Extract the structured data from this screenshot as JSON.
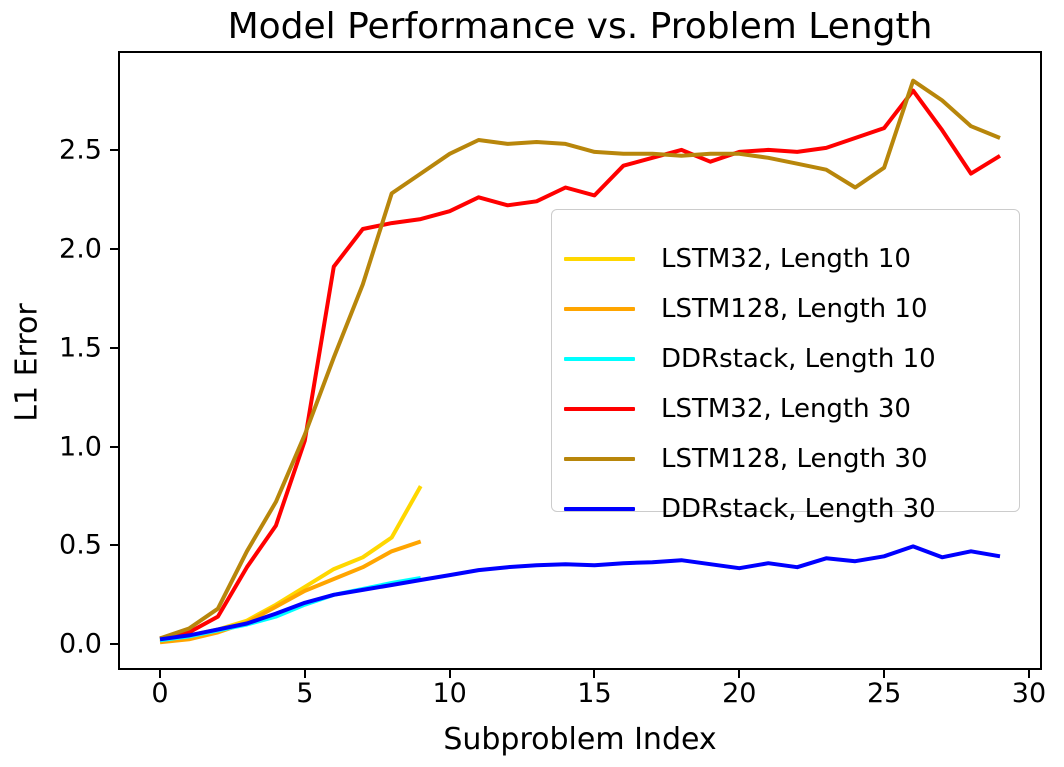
{
  "figure": {
    "title": "Model Performance vs. Problem Length",
    "xlabel": "Subproblem Index",
    "ylabel": "L1 Error"
  },
  "chart_data": {
    "type": "line",
    "title": "Model Performance vs. Problem Length",
    "xlabel": "Subproblem Index",
    "ylabel": "L1 Error",
    "grid": false,
    "legend_position": "center-right",
    "xlim": [
      -1.45,
      30.45
    ],
    "ylim": [
      -0.13,
      3.0
    ],
    "x_ticks": [
      "0",
      "5",
      "10",
      "15",
      "20",
      "25",
      "30"
    ],
    "y_ticks": [
      "0.0",
      "0.5",
      "1.0",
      "1.5",
      "2.0",
      "2.5"
    ],
    "series": [
      {
        "name": "LSTM32, Length 10",
        "color": "#FFD700",
        "x": [
          0,
          1,
          2,
          3,
          4,
          5,
          6,
          7,
          8,
          9
        ],
        "y": [
          0.02,
          0.045,
          0.075,
          0.12,
          0.2,
          0.29,
          0.38,
          0.44,
          0.54,
          0.8
        ]
      },
      {
        "name": "LSTM128, Length 10",
        "color": "#FFA500",
        "x": [
          0,
          1,
          2,
          3,
          4,
          5,
          6,
          7,
          8,
          9
        ],
        "y": [
          0.01,
          0.025,
          0.06,
          0.11,
          0.19,
          0.27,
          0.33,
          0.39,
          0.47,
          0.52
        ]
      },
      {
        "name": "DDRstack, Length 10",
        "color": "#00FFFF",
        "x": [
          0,
          1,
          2,
          3,
          4,
          5,
          6,
          7,
          8,
          9
        ],
        "y": [
          0.02,
          0.04,
          0.07,
          0.1,
          0.14,
          0.2,
          0.25,
          0.28,
          0.31,
          0.335
        ]
      },
      {
        "name": "LSTM32, Length 30",
        "color": "#FF0000",
        "x": [
          0,
          1,
          2,
          3,
          4,
          5,
          6,
          7,
          8,
          9,
          10,
          11,
          12,
          13,
          14,
          15,
          16,
          17,
          18,
          19,
          20,
          21,
          22,
          23,
          24,
          25,
          26,
          27,
          28,
          29
        ],
        "y": [
          0.03,
          0.06,
          0.14,
          0.39,
          0.6,
          1.03,
          1.91,
          2.1,
          2.13,
          2.15,
          2.19,
          2.26,
          2.22,
          2.24,
          2.31,
          2.27,
          2.42,
          2.46,
          2.5,
          2.44,
          2.49,
          2.5,
          2.49,
          2.51,
          2.56,
          2.61,
          2.8,
          2.6,
          2.38,
          2.47
        ]
      },
      {
        "name": "LSTM128, Length 30",
        "color": "#B8860B",
        "x": [
          0,
          1,
          2,
          3,
          4,
          5,
          6,
          7,
          8,
          9,
          10,
          11,
          12,
          13,
          14,
          15,
          16,
          17,
          18,
          19,
          20,
          21,
          22,
          23,
          24,
          25,
          26,
          27,
          28,
          29
        ],
        "y": [
          0.03,
          0.08,
          0.18,
          0.47,
          0.72,
          1.06,
          1.45,
          1.82,
          2.28,
          2.38,
          2.48,
          2.55,
          2.53,
          2.54,
          2.53,
          2.49,
          2.48,
          2.48,
          2.47,
          2.48,
          2.48,
          2.46,
          2.43,
          2.4,
          2.31,
          2.41,
          2.85,
          2.75,
          2.62,
          2.56
        ]
      },
      {
        "name": "DDRstack, Length 30",
        "color": "#0000FF",
        "x": [
          0,
          1,
          2,
          3,
          4,
          5,
          6,
          7,
          8,
          9,
          10,
          11,
          12,
          13,
          14,
          15,
          16,
          17,
          18,
          19,
          20,
          21,
          22,
          23,
          24,
          25,
          26,
          27,
          28,
          29
        ],
        "y": [
          0.025,
          0.045,
          0.075,
          0.105,
          0.155,
          0.21,
          0.25,
          0.275,
          0.3,
          0.325,
          0.35,
          0.375,
          0.39,
          0.4,
          0.405,
          0.4,
          0.41,
          0.415,
          0.425,
          0.405,
          0.385,
          0.41,
          0.39,
          0.435,
          0.42,
          0.445,
          0.495,
          0.44,
          0.47,
          0.445
        ]
      }
    ]
  }
}
